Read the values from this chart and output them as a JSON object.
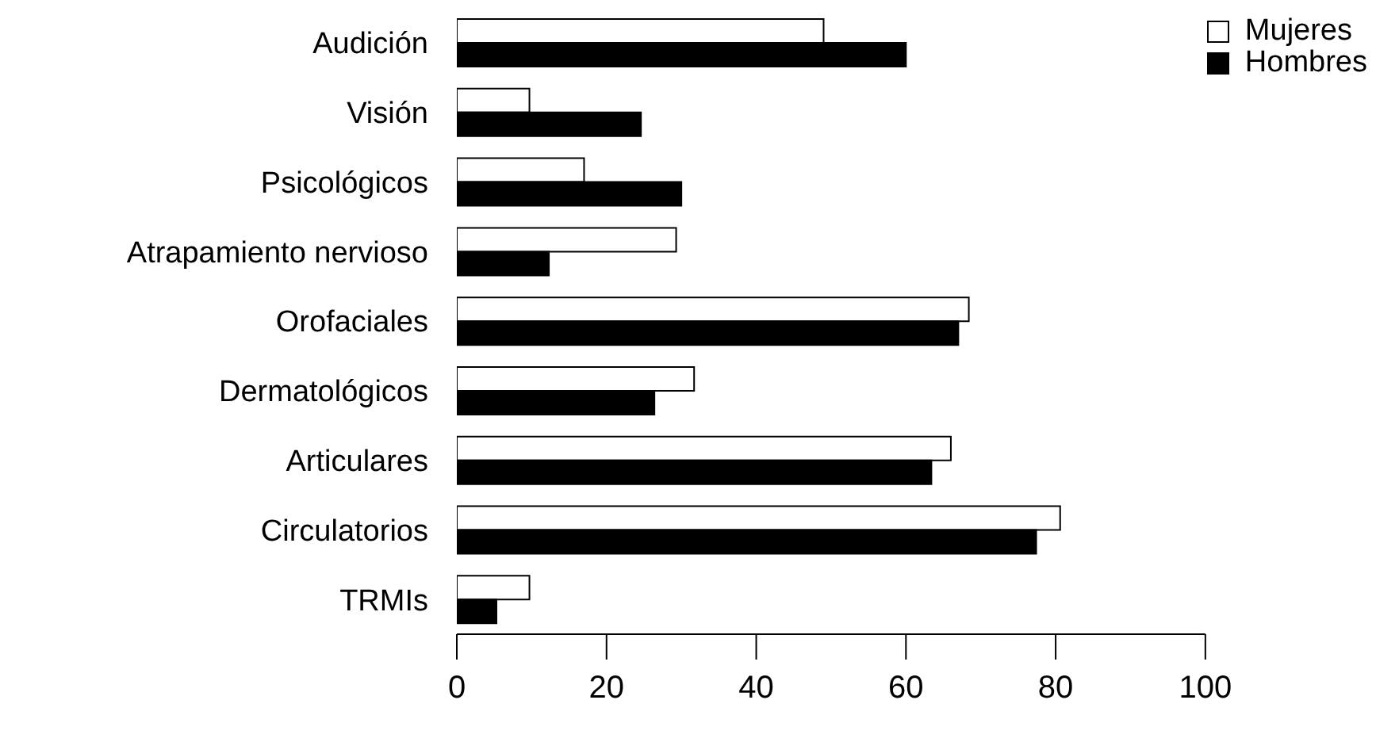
{
  "chart_data": {
    "type": "bar",
    "orientation": "horizontal",
    "categories": [
      "Audición",
      "Visión",
      "Psicológicos",
      "Atrapamiento nervioso",
      "Orofaciales",
      "Dermatológicos",
      "Articulares",
      "Circulatorios",
      "TRMIs"
    ],
    "series": [
      {
        "name": "Mujeres",
        "color": "#ffffff",
        "values": [
          49,
          9.7,
          17,
          29.3,
          68.4,
          31.7,
          66,
          80.6,
          9.7
        ]
      },
      {
        "name": "Hombres",
        "color": "#000000",
        "values": [
          60,
          24.6,
          30,
          12.3,
          67,
          26.4,
          63.4,
          77.4,
          5.3
        ]
      }
    ],
    "xlim": [
      0,
      100
    ],
    "xticks": [
      0,
      20,
      40,
      60,
      80,
      100
    ],
    "grid": false,
    "legend": "top right"
  }
}
